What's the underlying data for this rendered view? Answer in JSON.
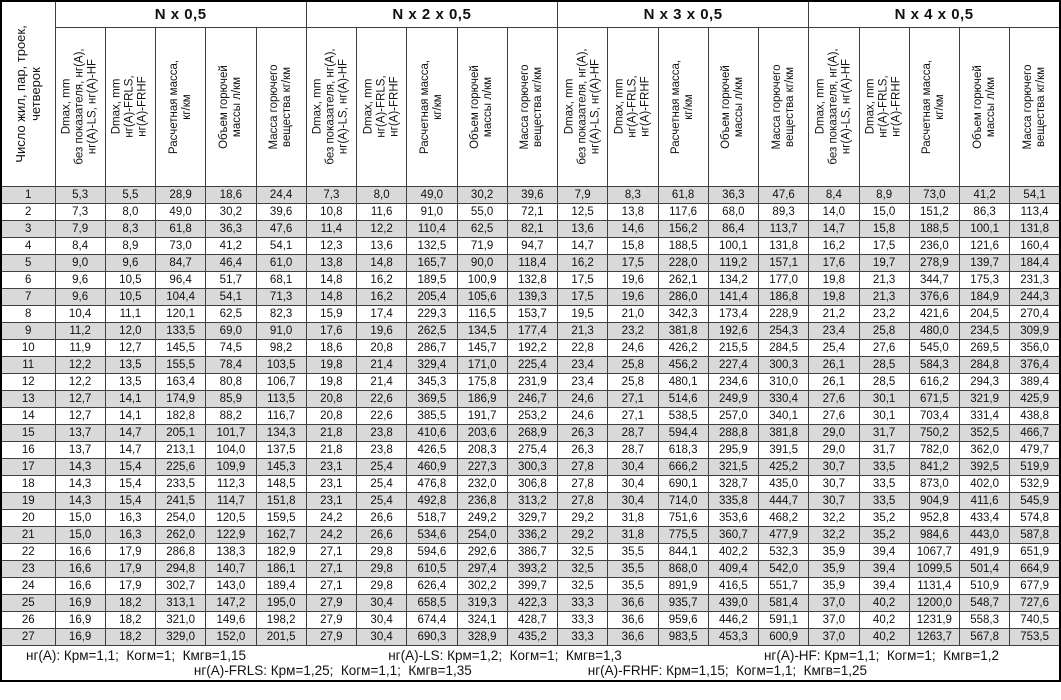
{
  "table": {
    "corner_header_lines": [
      "Число жил, пар, троек,",
      "четверок"
    ],
    "groups": [
      {
        "title": "N x 0,5"
      },
      {
        "title": "N x 2 x 0,5"
      },
      {
        "title": "N x 3 x 0,5"
      },
      {
        "title": "N x 4 x 0,5"
      }
    ],
    "sub_headers": [
      [
        "Dmax, mm",
        "без показателя, нг(А),",
        "нг(А)-LS, нг(А)-HF"
      ],
      [
        "Dmax, mm",
        "нг(А)-FRLS,",
        "нг(А)-FRHF"
      ],
      [
        "Расчетная масса,",
        "кг/км"
      ],
      [
        "Объем горючей",
        "массы л/км"
      ],
      [
        "Масса горючего",
        "вещества кг/км"
      ]
    ],
    "rows": [
      {
        "n": "1",
        "g1": [
          "5,3",
          "5,5",
          "28,9",
          "18,6",
          "24,4"
        ],
        "g2": [
          "7,3",
          "8,0",
          "49,0",
          "30,2",
          "39,6"
        ],
        "g3": [
          "7,9",
          "8,3",
          "61,8",
          "36,3",
          "47,6"
        ],
        "g4": [
          "8,4",
          "8,9",
          "73,0",
          "41,2",
          "54,1"
        ]
      },
      {
        "n": "2",
        "g1": [
          "7,3",
          "8,0",
          "49,0",
          "30,2",
          "39,6"
        ],
        "g2": [
          "10,8",
          "11,6",
          "91,0",
          "55,0",
          "72,1"
        ],
        "g3": [
          "12,5",
          "13,8",
          "117,6",
          "68,0",
          "89,3"
        ],
        "g4": [
          "14,0",
          "15,0",
          "151,2",
          "86,3",
          "113,4"
        ]
      },
      {
        "n": "3",
        "g1": [
          "7,9",
          "8,3",
          "61,8",
          "36,3",
          "47,6"
        ],
        "g2": [
          "11,4",
          "12,2",
          "110,4",
          "62,5",
          "82,1"
        ],
        "g3": [
          "13,6",
          "14,6",
          "156,2",
          "86,4",
          "113,7"
        ],
        "g4": [
          "14,7",
          "15,8",
          "188,5",
          "100,1",
          "131,8"
        ]
      },
      {
        "n": "4",
        "g1": [
          "8,4",
          "8,9",
          "73,0",
          "41,2",
          "54,1"
        ],
        "g2": [
          "12,3",
          "13,6",
          "132,5",
          "71,9",
          "94,7"
        ],
        "g3": [
          "14,7",
          "15,8",
          "188,5",
          "100,1",
          "131,8"
        ],
        "g4": [
          "16,2",
          "17,5",
          "236,0",
          "121,6",
          "160,4"
        ]
      },
      {
        "n": "5",
        "g1": [
          "9,0",
          "9,6",
          "84,7",
          "46,4",
          "61,0"
        ],
        "g2": [
          "13,8",
          "14,8",
          "165,7",
          "90,0",
          "118,4"
        ],
        "g3": [
          "16,2",
          "17,5",
          "228,0",
          "119,2",
          "157,1"
        ],
        "g4": [
          "17,6",
          "19,7",
          "278,9",
          "139,7",
          "184,4"
        ]
      },
      {
        "n": "6",
        "g1": [
          "9,6",
          "10,5",
          "96,4",
          "51,7",
          "68,1"
        ],
        "g2": [
          "14,8",
          "16,2",
          "189,5",
          "100,9",
          "132,8"
        ],
        "g3": [
          "17,5",
          "19,6",
          "262,1",
          "134,2",
          "177,0"
        ],
        "g4": [
          "19,8",
          "21,3",
          "344,7",
          "175,3",
          "231,3"
        ]
      },
      {
        "n": "7",
        "g1": [
          "9,6",
          "10,5",
          "104,4",
          "54,1",
          "71,3"
        ],
        "g2": [
          "14,8",
          "16,2",
          "205,4",
          "105,6",
          "139,3"
        ],
        "g3": [
          "17,5",
          "19,6",
          "286,0",
          "141,4",
          "186,8"
        ],
        "g4": [
          "19,8",
          "21,3",
          "376,6",
          "184,9",
          "244,3"
        ]
      },
      {
        "n": "8",
        "g1": [
          "10,4",
          "11,1",
          "120,1",
          "62,5",
          "82,3"
        ],
        "g2": [
          "15,9",
          "17,4",
          "229,3",
          "116,5",
          "153,7"
        ],
        "g3": [
          "19,5",
          "21,0",
          "342,3",
          "173,4",
          "228,9"
        ],
        "g4": [
          "21,2",
          "23,2",
          "421,6",
          "204,5",
          "270,4"
        ]
      },
      {
        "n": "9",
        "g1": [
          "11,2",
          "12,0",
          "133,5",
          "69,0",
          "91,0"
        ],
        "g2": [
          "17,6",
          "19,6",
          "262,5",
          "134,5",
          "177,4"
        ],
        "g3": [
          "21,3",
          "23,2",
          "381,8",
          "192,6",
          "254,3"
        ],
        "g4": [
          "23,4",
          "25,8",
          "480,0",
          "234,5",
          "309,9"
        ]
      },
      {
        "n": "10",
        "g1": [
          "11,9",
          "12,7",
          "145,5",
          "74,5",
          "98,2"
        ],
        "g2": [
          "18,6",
          "20,8",
          "286,7",
          "145,7",
          "192,2"
        ],
        "g3": [
          "22,8",
          "24,6",
          "426,2",
          "215,5",
          "284,5"
        ],
        "g4": [
          "25,4",
          "27,6",
          "545,0",
          "269,5",
          "356,0"
        ]
      },
      {
        "n": "11",
        "g1": [
          "12,2",
          "13,5",
          "155,5",
          "78,4",
          "103,5"
        ],
        "g2": [
          "19,8",
          "21,4",
          "329,4",
          "171,0",
          "225,4"
        ],
        "g3": [
          "23,4",
          "25,8",
          "456,2",
          "227,4",
          "300,3"
        ],
        "g4": [
          "26,1",
          "28,5",
          "584,3",
          "284,8",
          "376,4"
        ]
      },
      {
        "n": "12",
        "g1": [
          "12,2",
          "13,5",
          "163,4",
          "80,8",
          "106,7"
        ],
        "g2": [
          "19,8",
          "21,4",
          "345,3",
          "175,8",
          "231,9"
        ],
        "g3": [
          "23,4",
          "25,8",
          "480,1",
          "234,6",
          "310,0"
        ],
        "g4": [
          "26,1",
          "28,5",
          "616,2",
          "294,3",
          "389,4"
        ]
      },
      {
        "n": "13",
        "g1": [
          "12,7",
          "14,1",
          "174,9",
          "85,9",
          "113,5"
        ],
        "g2": [
          "20,8",
          "22,6",
          "369,5",
          "186,9",
          "246,7"
        ],
        "g3": [
          "24,6",
          "27,1",
          "514,6",
          "249,9",
          "330,4"
        ],
        "g4": [
          "27,6",
          "30,1",
          "671,5",
          "321,9",
          "425,9"
        ]
      },
      {
        "n": "14",
        "g1": [
          "12,7",
          "14,1",
          "182,8",
          "88,2",
          "116,7"
        ],
        "g2": [
          "20,8",
          "22,6",
          "385,5",
          "191,7",
          "253,2"
        ],
        "g3": [
          "24,6",
          "27,1",
          "538,5",
          "257,0",
          "340,1"
        ],
        "g4": [
          "27,6",
          "30,1",
          "703,4",
          "331,4",
          "438,8"
        ]
      },
      {
        "n": "15",
        "g1": [
          "13,7",
          "14,7",
          "205,1",
          "101,7",
          "134,3"
        ],
        "g2": [
          "21,8",
          "23,8",
          "410,6",
          "203,6",
          "268,9"
        ],
        "g3": [
          "26,3",
          "28,7",
          "594,4",
          "288,8",
          "381,8"
        ],
        "g4": [
          "29,0",
          "31,7",
          "750,2",
          "352,5",
          "466,7"
        ]
      },
      {
        "n": "16",
        "g1": [
          "13,7",
          "14,7",
          "213,1",
          "104,0",
          "137,5"
        ],
        "g2": [
          "21,8",
          "23,8",
          "426,5",
          "208,3",
          "275,4"
        ],
        "g3": [
          "26,3",
          "28,7",
          "618,3",
          "295,9",
          "391,5"
        ],
        "g4": [
          "29,0",
          "31,7",
          "782,0",
          "362,0",
          "479,7"
        ]
      },
      {
        "n": "17",
        "g1": [
          "14,3",
          "15,4",
          "225,6",
          "109,9",
          "145,3"
        ],
        "g2": [
          "23,1",
          "25,4",
          "460,9",
          "227,3",
          "300,3"
        ],
        "g3": [
          "27,8",
          "30,4",
          "666,2",
          "321,5",
          "425,2"
        ],
        "g4": [
          "30,7",
          "33,5",
          "841,2",
          "392,5",
          "519,9"
        ]
      },
      {
        "n": "18",
        "g1": [
          "14,3",
          "15,4",
          "233,5",
          "112,3",
          "148,5"
        ],
        "g2": [
          "23,1",
          "25,4",
          "476,8",
          "232,0",
          "306,8"
        ],
        "g3": [
          "27,8",
          "30,4",
          "690,1",
          "328,7",
          "435,0"
        ],
        "g4": [
          "30,7",
          "33,5",
          "873,0",
          "402,0",
          "532,9"
        ]
      },
      {
        "n": "19",
        "g1": [
          "14,3",
          "15,4",
          "241,5",
          "114,7",
          "151,8"
        ],
        "g2": [
          "23,1",
          "25,4",
          "492,8",
          "236,8",
          "313,2"
        ],
        "g3": [
          "27,8",
          "30,4",
          "714,0",
          "335,8",
          "444,7"
        ],
        "g4": [
          "30,7",
          "33,5",
          "904,9",
          "411,6",
          "545,9"
        ]
      },
      {
        "n": "20",
        "g1": [
          "15,0",
          "16,3",
          "254,0",
          "120,5",
          "159,5"
        ],
        "g2": [
          "24,2",
          "26,6",
          "518,7",
          "249,2",
          "329,7"
        ],
        "g3": [
          "29,2",
          "31,8",
          "751,6",
          "353,6",
          "468,2"
        ],
        "g4": [
          "32,2",
          "35,2",
          "952,8",
          "433,4",
          "574,8"
        ]
      },
      {
        "n": "21",
        "g1": [
          "15,0",
          "16,3",
          "262,0",
          "122,9",
          "162,7"
        ],
        "g2": [
          "24,2",
          "26,6",
          "534,6",
          "254,0",
          "336,2"
        ],
        "g3": [
          "29,2",
          "31,8",
          "775,5",
          "360,7",
          "477,9"
        ],
        "g4": [
          "32,2",
          "35,2",
          "984,6",
          "443,0",
          "587,8"
        ]
      },
      {
        "n": "22",
        "g1": [
          "16,6",
          "17,9",
          "286,8",
          "138,3",
          "182,9"
        ],
        "g2": [
          "27,1",
          "29,8",
          "594,6",
          "292,6",
          "386,7"
        ],
        "g3": [
          "32,5",
          "35,5",
          "844,1",
          "402,2",
          "532,3"
        ],
        "g4": [
          "35,9",
          "39,4",
          "1067,7",
          "491,9",
          "651,9"
        ]
      },
      {
        "n": "23",
        "g1": [
          "16,6",
          "17,9",
          "294,8",
          "140,7",
          "186,1"
        ],
        "g2": [
          "27,1",
          "29,8",
          "610,5",
          "297,4",
          "393,2"
        ],
        "g3": [
          "32,5",
          "35,5",
          "868,0",
          "409,4",
          "542,0"
        ],
        "g4": [
          "35,9",
          "39,4",
          "1099,5",
          "501,4",
          "664,9"
        ]
      },
      {
        "n": "24",
        "g1": [
          "16,6",
          "17,9",
          "302,7",
          "143,0",
          "189,4"
        ],
        "g2": [
          "27,1",
          "29,8",
          "626,4",
          "302,2",
          "399,7"
        ],
        "g3": [
          "32,5",
          "35,5",
          "891,9",
          "416,5",
          "551,7"
        ],
        "g4": [
          "35,9",
          "39,4",
          "1131,4",
          "510,9",
          "677,9"
        ]
      },
      {
        "n": "25",
        "g1": [
          "16,9",
          "18,2",
          "313,1",
          "147,2",
          "195,0"
        ],
        "g2": [
          "27,9",
          "30,4",
          "658,5",
          "319,3",
          "422,3"
        ],
        "g3": [
          "33,3",
          "36,6",
          "935,7",
          "439,0",
          "581,4"
        ],
        "g4": [
          "37,0",
          "40,2",
          "1200,0",
          "548,7",
          "727,6"
        ]
      },
      {
        "n": "26",
        "g1": [
          "16,9",
          "18,2",
          "321,0",
          "149,6",
          "198,2"
        ],
        "g2": [
          "27,9",
          "30,4",
          "674,4",
          "324,1",
          "428,7"
        ],
        "g3": [
          "33,3",
          "36,6",
          "959,6",
          "446,2",
          "591,1"
        ],
        "g4": [
          "37,0",
          "40,2",
          "1231,9",
          "558,3",
          "740,5"
        ]
      },
      {
        "n": "27",
        "g1": [
          "16,9",
          "18,2",
          "329,0",
          "152,0",
          "201,5"
        ],
        "g2": [
          "27,9",
          "30,4",
          "690,3",
          "328,9",
          "435,2"
        ],
        "g3": [
          "33,3",
          "36,6",
          "983,5",
          "453,3",
          "600,9"
        ],
        "g4": [
          "37,0",
          "40,2",
          "1263,7",
          "567,8",
          "753,5"
        ]
      }
    ],
    "footnotes": {
      "line1": [
        "нг(А): Крм=1,1;  Когм=1;  Кмгв=1,15",
        "нг(А)-LS: Крм=1,2;  Когм=1;  Кмгв=1,3",
        "нг(А)-HF: Крм=1,1;  Когм=1;  Кмгв=1,2"
      ],
      "line2": [
        "нг(А)-FRLS: Крм=1,25;  Когм=1,1;  Кмгв=1,35",
        "нг(А)-FRHF: Крм=1,15;  Когм=1,1;  Кмгв=1,25"
      ]
    },
    "colors": {
      "row_shaded": "#d9d9d9",
      "border": "#3f3f3f",
      "outer_border": "#000000"
    }
  }
}
